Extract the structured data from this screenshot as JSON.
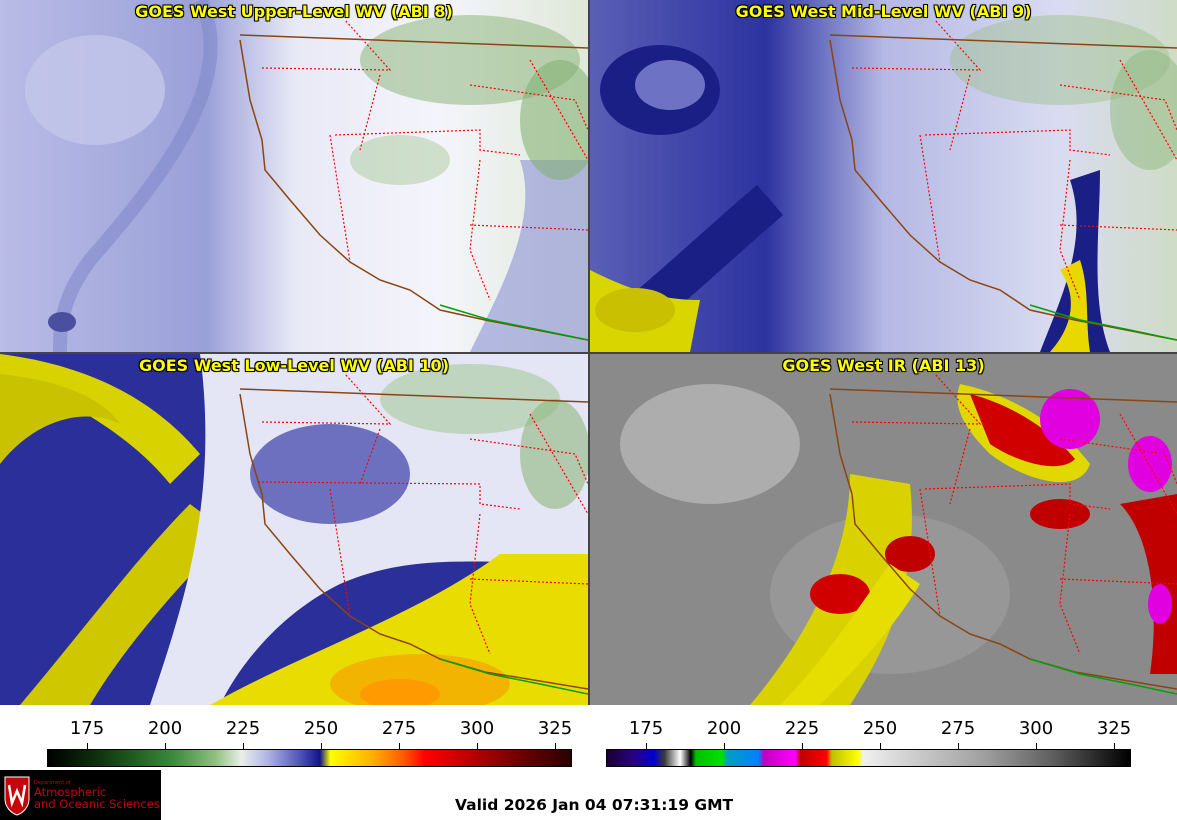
{
  "panels": [
    {
      "title": "GOES West Upper-Level WV (ABI 8)"
    },
    {
      "title": "GOES West Mid-Level WV (ABI 9)"
    },
    {
      "title": "GOES West Low-Level WV (ABI 10)"
    },
    {
      "title": "GOES West IR (ABI 13)"
    }
  ],
  "colorbars": [
    {
      "ticks": [
        "175",
        "200",
        "225",
        "250",
        "275",
        "300",
        "325"
      ]
    },
    {
      "ticks": [
        "175",
        "200",
        "225",
        "250",
        "275",
        "300",
        "325"
      ]
    }
  ],
  "footer": {
    "valid_time": "Valid 2026 Jan 04 07:31:19 GMT",
    "logo_dept": "Department of",
    "logo_line1": "Atmospheric",
    "logo_line2": "and Oceanic Sciences"
  },
  "colors": {
    "title_text": "#ffff00",
    "state_borders": "#ff0000",
    "coastline": "#8b4513",
    "mexico_border": "#00a000"
  }
}
